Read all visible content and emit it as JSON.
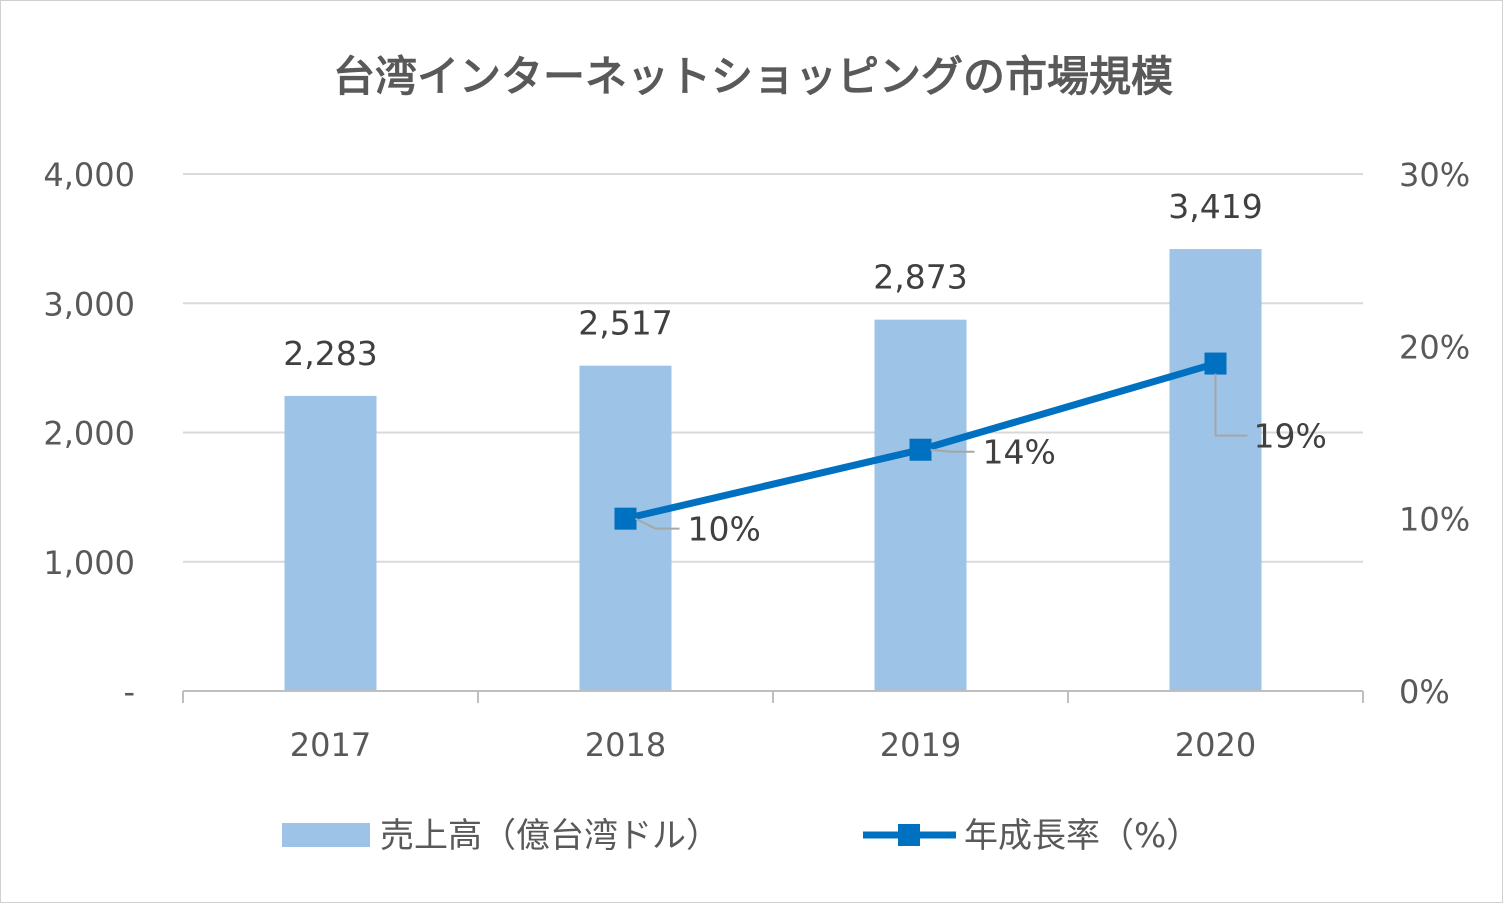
{
  "chart_data": {
    "type": "bar",
    "title": "台湾インターネットショッピングの市場規模",
    "categories": [
      "2017",
      "2018",
      "2019",
      "2020"
    ],
    "series": [
      {
        "name": "売上高（億台湾ドル）",
        "type": "bar",
        "axis": "left",
        "values": [
          2283,
          2517,
          2873,
          3419
        ],
        "labels": [
          "2,283",
          "2,517",
          "2,873",
          "3,419"
        ],
        "color": "#9DC3E6"
      },
      {
        "name": "年成長率（%）",
        "type": "line",
        "axis": "right",
        "values": [
          null,
          10,
          14,
          19
        ],
        "labels": [
          "",
          "10%",
          "14%",
          "19%"
        ],
        "color": "#0070C0"
      }
    ],
    "y_left": {
      "range": [
        0,
        4000
      ],
      "ticks": [
        0,
        1000,
        2000,
        3000,
        4000
      ],
      "tick_labels": [
        "-",
        "1,000",
        "2,000",
        "3,000",
        "4,000"
      ]
    },
    "y_right": {
      "range": [
        0,
        30
      ],
      "ticks": [
        0,
        10,
        20,
        30
      ],
      "tick_labels": [
        "0%",
        "10%",
        "20%",
        "30%"
      ]
    },
    "grid": true,
    "legend_position": "bottom",
    "gridline_color": "#D9D9D9",
    "axis_color": "#BFBFBF",
    "leader_line_color": "#A6A6A6"
  }
}
